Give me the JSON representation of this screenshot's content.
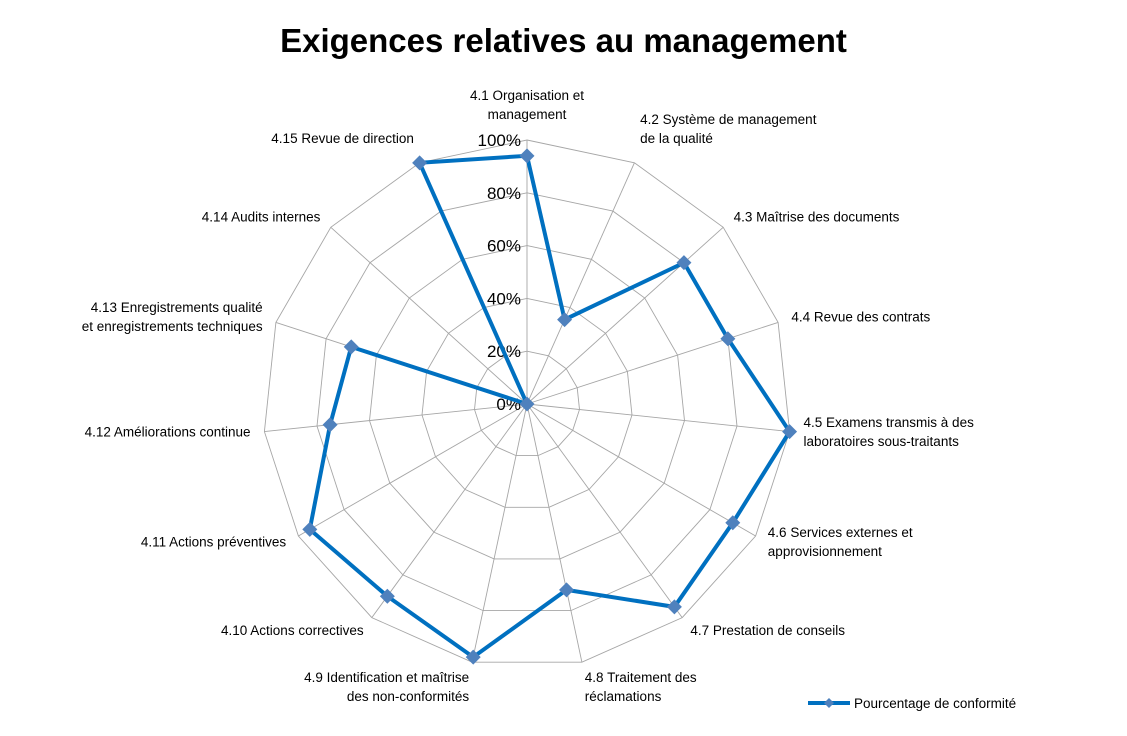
{
  "chart_data": {
    "type": "radar",
    "title": "Exigences relatives au management",
    "categories": [
      "4.1 Organisation et management",
      "4.2 Système de management de la qualité",
      "4.3 Maîtrise des documents",
      "4.4 Revue des contrats",
      "4.5 Examens transmis à des laboratoires sous-traitants",
      "4.6 Services externes et approvisionnement",
      "4.7 Prestation de conseils",
      "4.8 Traitement des réclamations",
      "4.9 Identification et maîtrise des non-conformités",
      "4.10 Actions correctives",
      "4.11 Actions préventives",
      "4.12 Améliorations continue",
      "4.13 Enregistrements qualité et enregistrements techniques",
      "4.14 Audits internes",
      "4.15 Revue de direction"
    ],
    "category_lines": [
      [
        "4.1 Organisation et",
        "management"
      ],
      [
        "4.2 Système de management",
        "de la qualité"
      ],
      [
        "4.3 Maîtrise des documents"
      ],
      [
        "4.4 Revue des contrats"
      ],
      [
        "4.5 Examens transmis à des",
        "laboratoires sous-traitants"
      ],
      [
        "4.6 Services externes et",
        "approvisionnement"
      ],
      [
        "4.7 Prestation de conseils"
      ],
      [
        "4.8 Traitement des",
        "réclamations"
      ],
      [
        "4.9 Identification et maîtrise",
        "des non-conformités"
      ],
      [
        "4.10 Actions correctives"
      ],
      [
        "4.11 Actions préventives"
      ],
      [
        "4.12 Améliorations continue"
      ],
      [
        "4.13 Enregistrements qualité",
        "et enregistrements techniques"
      ],
      [
        "4.14 Audits internes"
      ],
      [
        "4.15 Revue de direction"
      ]
    ],
    "series": [
      {
        "name": "Pourcentage de conformité",
        "color": "#0070c0",
        "marker_color": "#4f81bd",
        "values": [
          0.94,
          0.35,
          0.8,
          0.8,
          1.0,
          0.9,
          0.95,
          0.72,
          0.98,
          0.9,
          0.95,
          0.75,
          0.7,
          0.0,
          1.0
        ]
      }
    ],
    "rlim": [
      0,
      1
    ],
    "tick_labels": [
      "0%",
      "20%",
      "40%",
      "60%",
      "80%",
      "100%"
    ],
    "grid": true,
    "legend_position": "bottom-right"
  }
}
